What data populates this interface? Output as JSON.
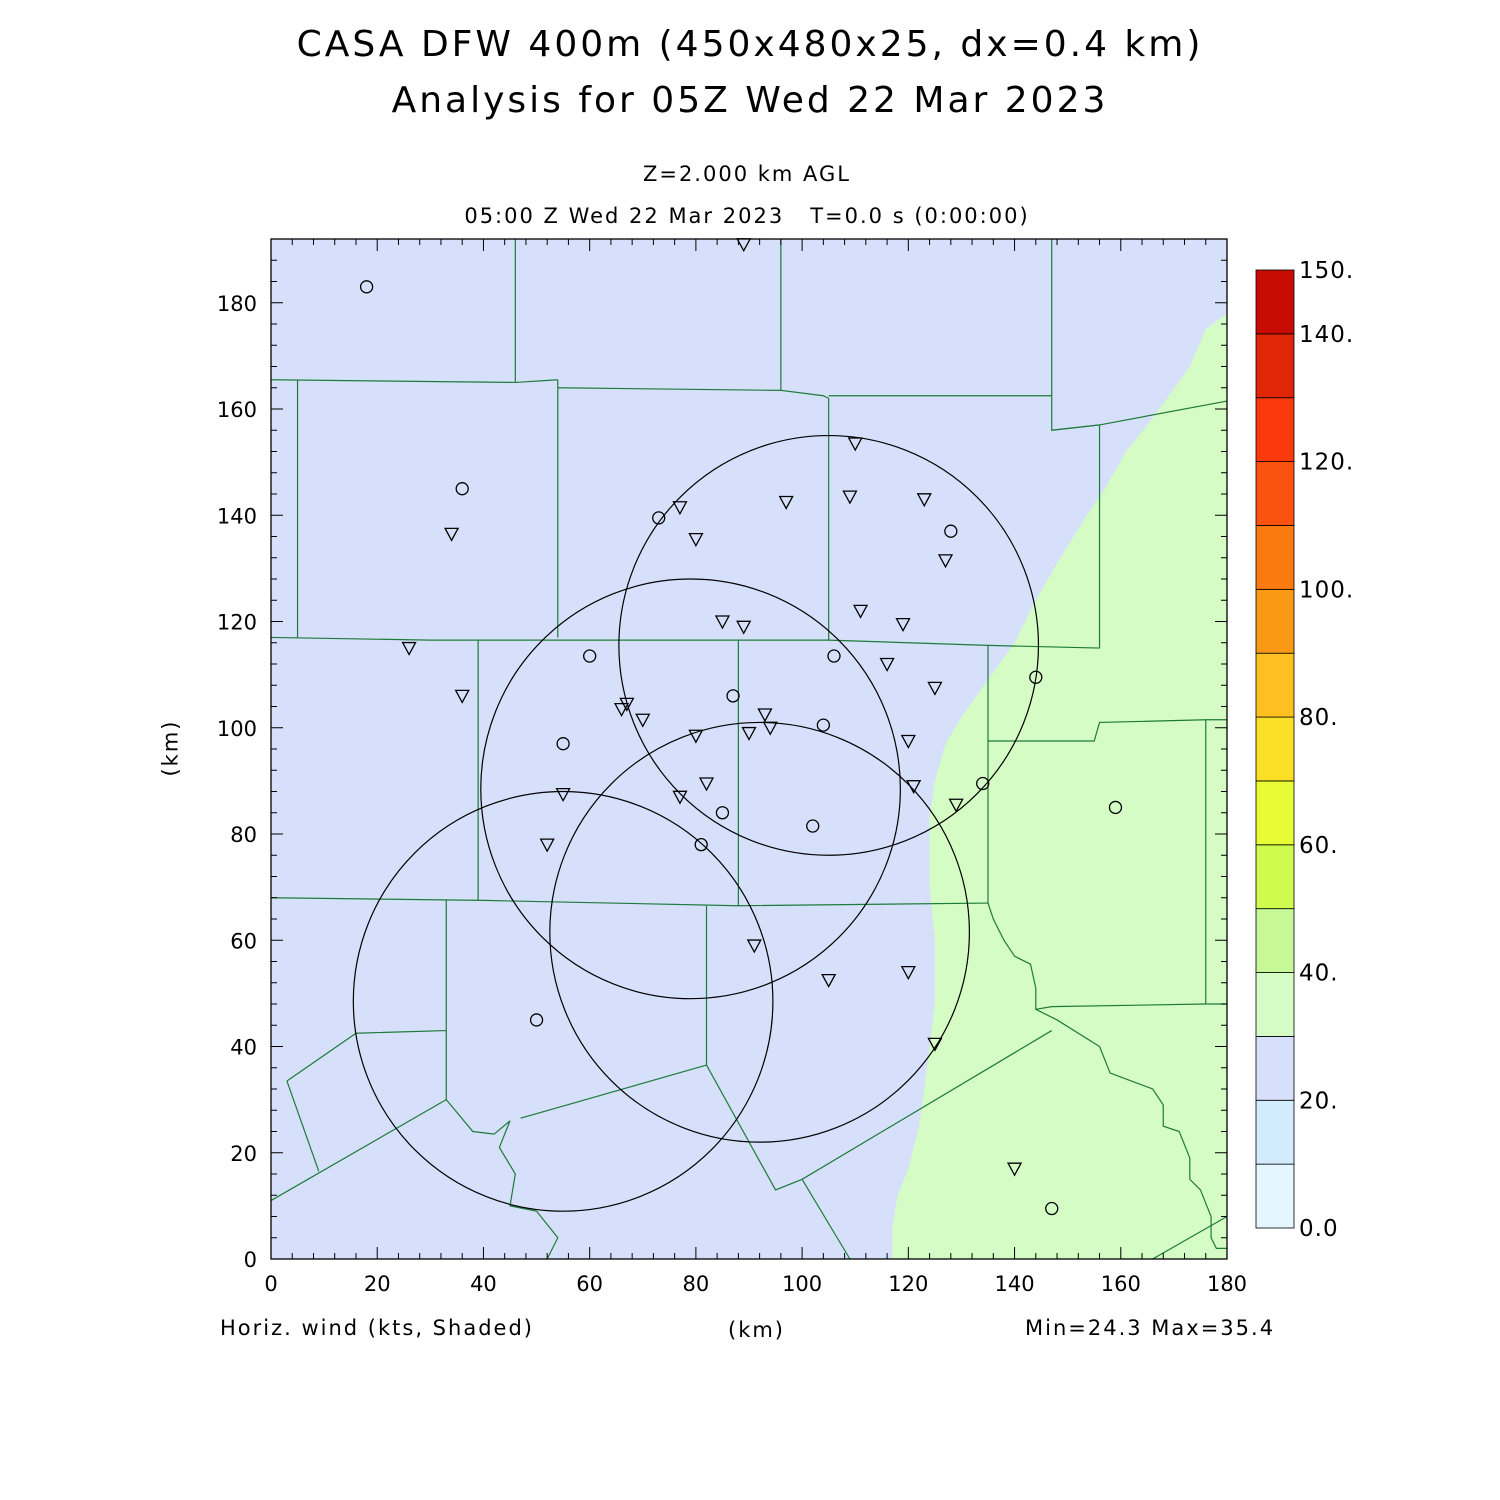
{
  "header": {
    "title_line1": "CASA DFW 400m (450x480x25, dx=0.4 km)",
    "title_line2": "Analysis for 05Z Wed 22 Mar 2023",
    "level": "Z=2.000 km AGL",
    "time_line": "05:00 Z Wed 22 Mar 2023   T=0.0 s (0:00:00)"
  },
  "footer": {
    "field_label": "Horiz. wind (kts, Shaded)",
    "x_unit": "(km)",
    "minmax": "Min=24.3 Max=35.4"
  },
  "chart_data": {
    "type": "heatmap",
    "xlabel": "(km)",
    "ylabel": "(km)",
    "xlim": [
      0,
      180
    ],
    "ylim": [
      0,
      192
    ],
    "x_ticks": [
      0,
      20,
      40,
      60,
      80,
      100,
      120,
      140,
      160,
      180
    ],
    "y_ticks": [
      0,
      20,
      40,
      60,
      80,
      100,
      120,
      140,
      160,
      180
    ],
    "field": "Horiz. wind (kts)",
    "min": 24.3,
    "max": 35.4,
    "regions": [
      {
        "name": "west",
        "color_band": "25-30",
        "color": "#d6e0fa"
      },
      {
        "name": "east",
        "color_band": "30-35",
        "color": "#d4fcc4"
      }
    ],
    "wind_30kt_boundary": [
      [
        180,
        178
      ],
      [
        176,
        175
      ],
      [
        173,
        168
      ],
      [
        168,
        161
      ],
      [
        165,
        157
      ],
      [
        161,
        152
      ],
      [
        157,
        145
      ],
      [
        153,
        139
      ],
      [
        148,
        131
      ],
      [
        144,
        124
      ],
      [
        140,
        116
      ],
      [
        135,
        109
      ],
      [
        130,
        102
      ],
      [
        127,
        97
      ],
      [
        125,
        90
      ],
      [
        124,
        83
      ],
      [
        124,
        70
      ],
      [
        125,
        60
      ],
      [
        125,
        48
      ],
      [
        124,
        40
      ],
      [
        123,
        32
      ],
      [
        122,
        25
      ],
      [
        120,
        17
      ],
      [
        118,
        12
      ],
      [
        117,
        6
      ],
      [
        117,
        0
      ]
    ],
    "colorbar": {
      "levels": [
        0,
        10,
        20,
        30,
        40,
        50,
        60,
        70,
        80,
        90,
        100,
        110,
        120,
        130,
        140,
        150
      ],
      "labels": [
        "0.0",
        "20.",
        "40.",
        "60.",
        "80.",
        "100.",
        "120.",
        "140.",
        "150."
      ],
      "colors": [
        "#e4f6ff",
        "#d2ecfd",
        "#d6e0fa",
        "#d4fcc4",
        "#c6f898",
        "#cffa4e",
        "#e8fc36",
        "#fce028",
        "#fdc020",
        "#fa9a14",
        "#fb7a10",
        "#fc5210",
        "#fa3a0c",
        "#e02606",
        "#c80c04",
        "#b00000"
      ]
    },
    "radar_coverage_circles": [
      {
        "cx": 105,
        "cy": 115.5,
        "r": 39.5
      },
      {
        "cx": 79,
        "cy": 88.5,
        "r": 39.5
      },
      {
        "cx": 92,
        "cy": 61.5,
        "r": 39.5
      },
      {
        "cx": 55,
        "cy": 48.5,
        "r": 39.5
      }
    ],
    "county_lines": [
      [
        [
          0,
          165.5
        ],
        [
          46,
          165
        ],
        [
          54,
          165.5
        ]
      ],
      [
        [
          46,
          192
        ],
        [
          46,
          165
        ]
      ],
      [
        [
          96,
          192
        ],
        [
          96,
          163.5
        ],
        [
          104,
          162.5
        ],
        [
          105,
          162
        ]
      ],
      [
        [
          147,
          192
        ],
        [
          147,
          162.5
        ],
        [
          105,
          162.5
        ]
      ],
      [
        [
          54,
          165.5
        ],
        [
          54,
          117
        ]
      ],
      [
        [
          54,
          164
        ],
        [
          96,
          163.5
        ]
      ],
      [
        [
          105,
          162
        ],
        [
          105,
          116.5
        ]
      ],
      [
        [
          147,
          162.5
        ],
        [
          147,
          156
        ],
        [
          156,
          157
        ],
        [
          156,
          115
        ]
      ],
      [
        [
          147,
          156
        ],
        [
          156,
          157
        ],
        [
          180,
          161.5
        ]
      ],
      [
        [
          5,
          165.5
        ],
        [
          5,
          117
        ]
      ],
      [
        [
          0,
          117
        ],
        [
          30,
          116.5
        ],
        [
          105,
          116.5
        ],
        [
          135,
          115.5
        ],
        [
          156,
          115
        ]
      ],
      [
        [
          39,
          116.5
        ],
        [
          39,
          67.5
        ]
      ],
      [
        [
          88,
          116.5
        ],
        [
          88,
          66.5
        ]
      ],
      [
        [
          135,
          115.5
        ],
        [
          135,
          67
        ]
      ],
      [
        [
          135,
          97.5
        ],
        [
          155,
          97.5
        ],
        [
          156,
          101
        ],
        [
          176,
          101.5
        ],
        [
          180,
          101.5
        ]
      ],
      [
        [
          176,
          101.5
        ],
        [
          176,
          48
        ]
      ],
      [
        [
          0,
          68
        ],
        [
          40,
          67.5
        ],
        [
          88,
          66.5
        ],
        [
          135,
          67
        ]
      ],
      [
        [
          33,
          67.5
        ],
        [
          33,
          43
        ],
        [
          16,
          42.5
        ],
        [
          3,
          33.5
        ]
      ],
      [
        [
          82,
          66.5
        ],
        [
          82,
          36.5
        ],
        [
          47,
          26.5
        ]
      ],
      [
        [
          0,
          11
        ],
        [
          33,
          30
        ],
        [
          38,
          24
        ],
        [
          42,
          23.5
        ],
        [
          45,
          26
        ],
        [
          43,
          21
        ],
        [
          46,
          16
        ],
        [
          45,
          10
        ],
        [
          50,
          9
        ],
        [
          54,
          4
        ],
        [
          52,
          0
        ]
      ],
      [
        [
          33,
          43
        ],
        [
          33,
          30
        ]
      ],
      [
        [
          135,
          67
        ],
        [
          136,
          64
        ],
        [
          138,
          60
        ],
        [
          140,
          57
        ],
        [
          143,
          55.5
        ],
        [
          144,
          51
        ],
        [
          144,
          47
        ],
        [
          147,
          47.5
        ],
        [
          176,
          48
        ],
        [
          180,
          48
        ]
      ],
      [
        [
          144,
          47
        ],
        [
          148,
          45
        ],
        [
          156,
          40
        ],
        [
          158,
          35
        ],
        [
          166,
          32
        ],
        [
          168,
          29
        ],
        [
          168,
          25
        ],
        [
          171,
          24
        ],
        [
          173,
          19
        ],
        [
          173,
          15
        ],
        [
          175,
          13
        ],
        [
          177,
          8
        ],
        [
          177,
          4
        ],
        [
          178,
          2
        ],
        [
          180,
          2
        ]
      ],
      [
        [
          82,
          36.5
        ],
        [
          95,
          13
        ],
        [
          100,
          15
        ],
        [
          147,
          43
        ]
      ],
      [
        [
          100,
          15
        ],
        [
          109,
          0
        ]
      ],
      [
        [
          166,
          0
        ],
        [
          180,
          8
        ]
      ],
      [
        [
          3,
          33.5
        ],
        [
          9,
          16.5
        ]
      ]
    ],
    "stations": [
      {
        "type": "circle",
        "x": 18,
        "y": 183
      },
      {
        "type": "circle",
        "x": 36,
        "y": 145
      },
      {
        "type": "triangle",
        "x": 34,
        "y": 136.5
      },
      {
        "type": "triangle",
        "x": 26,
        "y": 115
      },
      {
        "type": "triangle",
        "x": 36,
        "y": 106
      },
      {
        "type": "triangle",
        "x": 89,
        "y": 191
      },
      {
        "type": "circle",
        "x": 73,
        "y": 139.5
      },
      {
        "type": "triangle",
        "x": 77,
        "y": 141.5
      },
      {
        "type": "triangle",
        "x": 80,
        "y": 135.5
      },
      {
        "type": "triangle",
        "x": 97,
        "y": 142.5
      },
      {
        "type": "triangle",
        "x": 110,
        "y": 153.5
      },
      {
        "type": "triangle",
        "x": 109,
        "y": 143.5
      },
      {
        "type": "triangle",
        "x": 123,
        "y": 143
      },
      {
        "type": "circle",
        "x": 128,
        "y": 137
      },
      {
        "type": "triangle",
        "x": 127,
        "y": 131.5
      },
      {
        "type": "triangle",
        "x": 111,
        "y": 122
      },
      {
        "type": "triangle",
        "x": 119,
        "y": 119.5
      },
      {
        "type": "triangle",
        "x": 85,
        "y": 120
      },
      {
        "type": "triangle",
        "x": 89,
        "y": 119
      },
      {
        "type": "circle",
        "x": 60,
        "y": 113.5
      },
      {
        "type": "circle",
        "x": 106,
        "y": 113.5
      },
      {
        "type": "triangle",
        "x": 116,
        "y": 112
      },
      {
        "type": "triangle",
        "x": 125,
        "y": 107.5
      },
      {
        "type": "circle",
        "x": 144,
        "y": 109.5
      },
      {
        "type": "circle",
        "x": 87,
        "y": 106
      },
      {
        "type": "triangle",
        "x": 67,
        "y": 104.5
      },
      {
        "type": "triangle",
        "x": 66,
        "y": 103.5
      },
      {
        "type": "triangle",
        "x": 70,
        "y": 101.5
      },
      {
        "type": "triangle",
        "x": 93,
        "y": 102.5
      },
      {
        "type": "triangle",
        "x": 94,
        "y": 100
      },
      {
        "type": "circle",
        "x": 104,
        "y": 100.5
      },
      {
        "type": "triangle",
        "x": 80,
        "y": 98.5
      },
      {
        "type": "triangle",
        "x": 90,
        "y": 99
      },
      {
        "type": "circle",
        "x": 55,
        "y": 97
      },
      {
        "type": "triangle",
        "x": 120,
        "y": 97.5
      },
      {
        "type": "triangle",
        "x": 82,
        "y": 89.5
      },
      {
        "type": "triangle",
        "x": 121,
        "y": 89
      },
      {
        "type": "circle",
        "x": 134,
        "y": 89.5
      },
      {
        "type": "triangle",
        "x": 55,
        "y": 87.5
      },
      {
        "type": "triangle",
        "x": 77,
        "y": 87
      },
      {
        "type": "triangle",
        "x": 129,
        "y": 85.5
      },
      {
        "type": "circle",
        "x": 85,
        "y": 84
      },
      {
        "type": "circle",
        "x": 159,
        "y": 85
      },
      {
        "type": "circle",
        "x": 102,
        "y": 81.5
      },
      {
        "type": "triangle",
        "x": 52,
        "y": 78
      },
      {
        "type": "circle",
        "x": 81,
        "y": 78
      },
      {
        "type": "triangle",
        "x": 91,
        "y": 59
      },
      {
        "type": "triangle",
        "x": 120,
        "y": 54
      },
      {
        "type": "triangle",
        "x": 105,
        "y": 52.5
      },
      {
        "type": "circle",
        "x": 50,
        "y": 45
      },
      {
        "type": "triangle",
        "x": 125,
        "y": 40.5
      },
      {
        "type": "triangle",
        "x": 140,
        "y": 17
      },
      {
        "type": "circle",
        "x": 147,
        "y": 9.5
      }
    ]
  }
}
